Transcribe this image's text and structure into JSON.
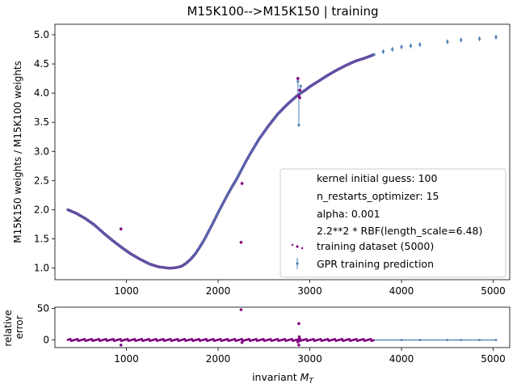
{
  "chart_data": [
    {
      "type": "scatter",
      "title": "M15K100-->M15K150 | training",
      "xlabel": "",
      "ylabel": "M15K150 weights / M15K100 weights",
      "xlim": [
        220,
        5180
      ],
      "ylim": [
        0.8,
        5.18
      ],
      "xticks": [
        1000,
        2000,
        3000,
        4000,
        5000
      ],
      "xtick_labels": [
        "1000",
        "2000",
        "3000",
        "4000",
        "5000"
      ],
      "yticks": [
        1.0,
        1.5,
        2.0,
        2.5,
        3.0,
        3.5,
        4.0,
        4.5,
        5.0
      ],
      "ytick_labels": [
        "1.0",
        "1.5",
        "2.0",
        "2.5",
        "3.0",
        "3.5",
        "4.0",
        "4.5",
        "5.0"
      ],
      "grid": false,
      "legend_position": "lower-right",
      "legend_text": [
        "kernel initial guess: 100",
        "n_restarts_optimizer: 15",
        "alpha: 0.001",
        "2.2**2 * RBF(length_scale=6.48)"
      ],
      "series": [
        {
          "name": "training dataset (5000)",
          "color": "#800080",
          "style": "points",
          "outliers": [
            [
              940,
              1.67
            ],
            [
              2250,
              1.44
            ],
            [
              2870,
              4.25
            ],
            [
              2880,
              3.95
            ],
            [
              2890,
              4.05
            ],
            [
              2260,
              2.45
            ],
            [
              2890,
              3.92
            ]
          ]
        },
        {
          "name": "GPR training prediction",
          "color": "#4a7fb5",
          "style": "errorbar-points",
          "x": [
            360,
            450,
            550,
            650,
            750,
            850,
            950,
            1050,
            1150,
            1250,
            1350,
            1450,
            1500,
            1550,
            1600,
            1650,
            1700,
            1750,
            1800,
            1850,
            1900,
            1950,
            2000,
            2050,
            2100,
            2150,
            2200,
            2250,
            2300,
            2350,
            2400,
            2450,
            2500,
            2550,
            2600,
            2650,
            2700,
            2750,
            2800,
            2850,
            2900,
            2950,
            3000,
            3100,
            3200,
            3300,
            3400,
            3500,
            3600,
            3700,
            3800,
            3900,
            4000,
            4100,
            4200,
            4500,
            4650,
            4850,
            5030
          ],
          "y": [
            2.0,
            1.94,
            1.85,
            1.74,
            1.6,
            1.47,
            1.35,
            1.24,
            1.15,
            1.07,
            1.02,
            1.0,
            1.0,
            1.01,
            1.03,
            1.08,
            1.15,
            1.24,
            1.36,
            1.49,
            1.64,
            1.79,
            1.95,
            2.1,
            2.25,
            2.39,
            2.52,
            2.67,
            2.82,
            2.96,
            3.09,
            3.22,
            3.33,
            3.44,
            3.54,
            3.64,
            3.72,
            3.8,
            3.87,
            3.94,
            4.0,
            4.05,
            4.11,
            4.21,
            4.31,
            4.4,
            4.48,
            4.55,
            4.6,
            4.66,
            4.71,
            4.75,
            4.79,
            4.81,
            4.83,
            4.88,
            4.91,
            4.93,
            4.96
          ],
          "spikes": [
            [
              2870,
              4.2
            ],
            [
              2880,
              3.45
            ],
            [
              2900,
              4.12
            ]
          ]
        }
      ]
    },
    {
      "type": "scatter",
      "title": "",
      "xlabel": "invariant $M_T$",
      "ylabel": "relative\nerror",
      "xlim": [
        220,
        5180
      ],
      "ylim": [
        -12,
        52
      ],
      "xticks": [
        1000,
        2000,
        3000,
        4000,
        5000
      ],
      "xtick_labels": [
        "1000",
        "2000",
        "3000",
        "4000",
        "5000"
      ],
      "yticks": [
        0,
        50
      ],
      "ytick_labels": [
        "0",
        "50"
      ],
      "grid": false,
      "series": [
        {
          "name": "",
          "color": "#800080",
          "style": "points",
          "x": [
            940,
            2250,
            2880,
            2885,
            2890,
            2870,
            2260,
            2880
          ],
          "y": [
            -8,
            48,
            26,
            5,
            2,
            -3,
            -4,
            -8
          ]
        }
      ],
      "baseline": {
        "x": [
          360,
          5030
        ],
        "y": [
          0,
          0
        ],
        "color": "#4a7fb5"
      }
    }
  ],
  "xlabel_rendered": {
    "prefix": "invariant ",
    "symbol": "M",
    "subscript": "T"
  }
}
